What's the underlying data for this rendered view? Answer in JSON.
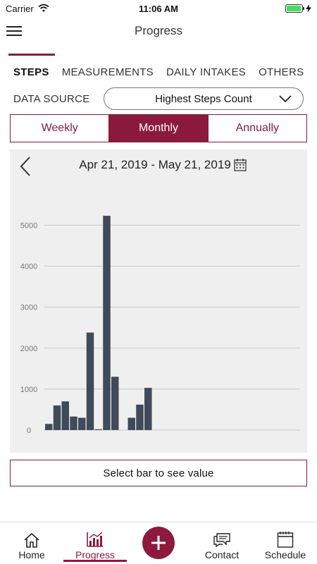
{
  "status_bar": {
    "carrier": "Carrier",
    "time": "11:06 AM",
    "battery_level": 0.95
  },
  "header": {
    "title": "Progress"
  },
  "tabs": [
    {
      "label": "STEPS",
      "active": true
    },
    {
      "label": "MEASUREMENTS",
      "active": false
    },
    {
      "label": "DAILY INTAKES",
      "active": false
    },
    {
      "label": "OTHERS",
      "active": false
    }
  ],
  "data_source": {
    "label": "DATA SOURCE",
    "value": "Highest Steps Count"
  },
  "period": [
    {
      "label": "Weekly",
      "active": false
    },
    {
      "label": "Monthly",
      "active": true
    },
    {
      "label": "Annually",
      "active": false
    }
  ],
  "chart_header": {
    "date_range": "Apr 21, 2019 - May 21, 2019"
  },
  "chart_data": {
    "type": "bar",
    "title": "",
    "xlabel": "",
    "ylabel": "",
    "ylim": [
      0,
      5300
    ],
    "yticks": [
      0,
      1000,
      2000,
      3000,
      4000,
      5000
    ],
    "grid": true,
    "bar_color": "#3f4a5a",
    "values": [
      150,
      600,
      700,
      330,
      300,
      2380,
      20,
      5230,
      1300,
      0,
      300,
      620,
      1030,
      0,
      0,
      0,
      0,
      0,
      0,
      0,
      0,
      0,
      0,
      0,
      0,
      0,
      0,
      0,
      0,
      0,
      0
    ]
  },
  "select_hint": "Select bar to see value",
  "bottom_nav": {
    "home": "Home",
    "progress": "Progress",
    "contact": "Contact",
    "schedule": "Schedule"
  },
  "colors": {
    "accent": "#8b1a3d",
    "chart_bg": "#efefef",
    "bar": "#3f4a5a"
  },
  "icons": {
    "menu": "hamburger-icon",
    "back": "chevron-left-icon",
    "calendar": "calendar-icon",
    "dropdown": "chevron-down-icon",
    "home": "home-icon",
    "progress": "bar-chart-icon",
    "add": "plus-icon",
    "contact": "chat-icon",
    "schedule": "schedule-icon"
  }
}
